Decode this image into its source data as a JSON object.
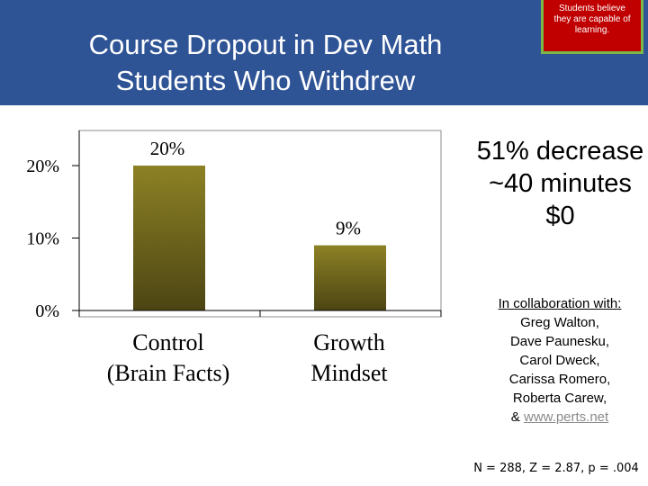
{
  "title": {
    "line1": "Course Dropout in Dev Math",
    "line2": "Students Who Withdrew"
  },
  "callout": {
    "lines": [
      "Students believe",
      "they are capable of",
      "learning."
    ]
  },
  "side_stats": [
    "51% decrease",
    "~40 minutes",
    "$0"
  ],
  "collaboration": {
    "heading": "In collaboration with:",
    "names": [
      "Greg Walton,",
      "Dave Paunesku,",
      "Carol Dweck,",
      "Carissa Romero,",
      "Roberta Carew,"
    ],
    "last_prefix": "& ",
    "link_text": "www.perts.net"
  },
  "stats_line": "N = 288, Z = 2.87, p = .004",
  "colors": {
    "header": "#2f5496",
    "bar_top": "#8d8125",
    "bar_bottom": "#4c4513",
    "callout_bg": "#c00000",
    "callout_border": "#7ab648"
  },
  "chart_data": {
    "type": "bar",
    "categories": [
      "Control (Brain Facts)",
      "Growth Mindset"
    ],
    "category_lines": [
      [
        "Control",
        "(Brain Facts)"
      ],
      [
        "Growth",
        "Mindset"
      ]
    ],
    "values": [
      20,
      9
    ],
    "data_labels": [
      "20%",
      "9%"
    ],
    "ylim": [
      0,
      20
    ],
    "yticks": [
      0,
      10,
      20
    ],
    "ytick_labels": [
      "0%",
      "10%",
      "20%"
    ],
    "grid": false
  }
}
